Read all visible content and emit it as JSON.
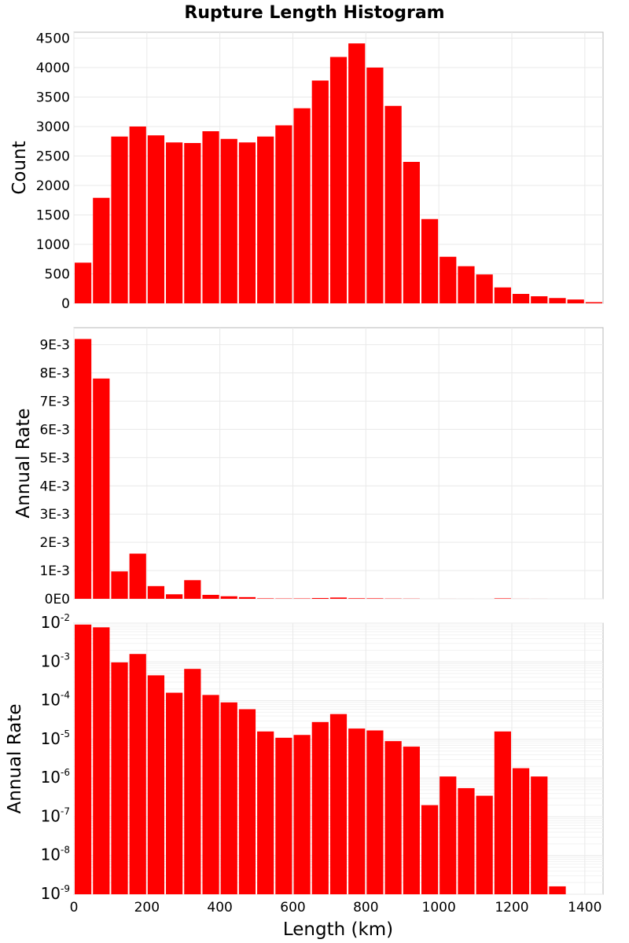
{
  "chart_data": {
    "title": "Rupture Length Histogram",
    "type": "bar",
    "x": {
      "label": "Length (km)",
      "range": [
        0,
        1450
      ],
      "ticks": [
        "0",
        "200",
        "400",
        "600",
        "800",
        "1000",
        "1200",
        "1400"
      ],
      "tick_values": [
        0,
        200,
        400,
        600,
        800,
        1000,
        1200,
        1400
      ],
      "bin_width": 50,
      "bin_starts": [
        0,
        50,
        100,
        150,
        200,
        250,
        300,
        350,
        400,
        450,
        500,
        550,
        600,
        650,
        700,
        750,
        800,
        850,
        900,
        950,
        1000,
        1050,
        1100,
        1150,
        1200,
        1250,
        1300,
        1350,
        1400
      ]
    },
    "panels": [
      {
        "id": "count",
        "ylabel": "Count",
        "scale": "linear",
        "ylim": [
          0,
          4600
        ],
        "ytick_values": [
          0,
          500,
          1000,
          1500,
          2000,
          2500,
          3000,
          3500,
          4000,
          4500
        ],
        "ytick_labels": [
          "0",
          "500",
          "1000",
          "1500",
          "2000",
          "2500",
          "3000",
          "3500",
          "4000",
          "4500"
        ],
        "values": [
          690,
          1790,
          2830,
          3000,
          2850,
          2730,
          2720,
          2920,
          2790,
          2730,
          2830,
          3020,
          3310,
          3780,
          4180,
          4410,
          4000,
          3350,
          2400,
          1430,
          790,
          630,
          490,
          270,
          160,
          120,
          90,
          65,
          20
        ]
      },
      {
        "id": "annual-rate-linear",
        "ylabel": "Annual Rate",
        "scale": "linear",
        "ylim": [
          0,
          0.0096
        ],
        "ytick_values": [
          0,
          0.001,
          0.002,
          0.003,
          0.004,
          0.005,
          0.006,
          0.007,
          0.008,
          0.009
        ],
        "ytick_labels": [
          "0E0",
          "1E-3",
          "2E-3",
          "3E-3",
          "4E-3",
          "5E-3",
          "6E-3",
          "7E-3",
          "8E-3",
          "9E-3"
        ],
        "values": [
          0.0092,
          0.0078,
          0.00097,
          0.0016,
          0.00045,
          0.00016,
          0.00066,
          0.00014,
          9e-05,
          6e-05,
          1.6e-05,
          1.1e-05,
          1.3e-05,
          2.8e-05,
          4.5e-05,
          1.9e-05,
          1.7e-05,
          9e-06,
          6.5e-06,
          2e-07,
          1.1e-06,
          5.5e-07,
          3.5e-07,
          1.6e-05,
          1.8e-06,
          1.1e-06,
          1.6e-09,
          0,
          0
        ]
      },
      {
        "id": "annual-rate-log",
        "ylabel": "Annual Rate",
        "scale": "log",
        "ylim": [
          1e-09,
          0.01
        ],
        "ytick_values": [
          0.01,
          0.001,
          0.0001,
          1e-05,
          1e-06,
          1e-07,
          1e-08,
          1e-09
        ],
        "ytick_labels": [
          {
            "base": "10",
            "exp": "-2"
          },
          {
            "base": "10",
            "exp": "-3"
          },
          {
            "base": "10",
            "exp": "-4"
          },
          {
            "base": "10",
            "exp": "-5"
          },
          {
            "base": "10",
            "exp": "-6"
          },
          {
            "base": "10",
            "exp": "-7"
          },
          {
            "base": "10",
            "exp": "-8"
          },
          {
            "base": "10",
            "exp": "-9"
          }
        ],
        "values": [
          0.0092,
          0.0078,
          0.00097,
          0.0016,
          0.00045,
          0.00016,
          0.00066,
          0.00014,
          9e-05,
          6e-05,
          1.6e-05,
          1.1e-05,
          1.3e-05,
          2.8e-05,
          4.5e-05,
          1.9e-05,
          1.7e-05,
          9e-06,
          6.5e-06,
          2e-07,
          1.1e-06,
          5.5e-07,
          3.5e-07,
          1.6e-05,
          1.8e-06,
          1.1e-06,
          1.6e-09,
          0,
          0
        ]
      }
    ],
    "bar_color": "#ff0000",
    "grid": true,
    "legend": "none"
  }
}
